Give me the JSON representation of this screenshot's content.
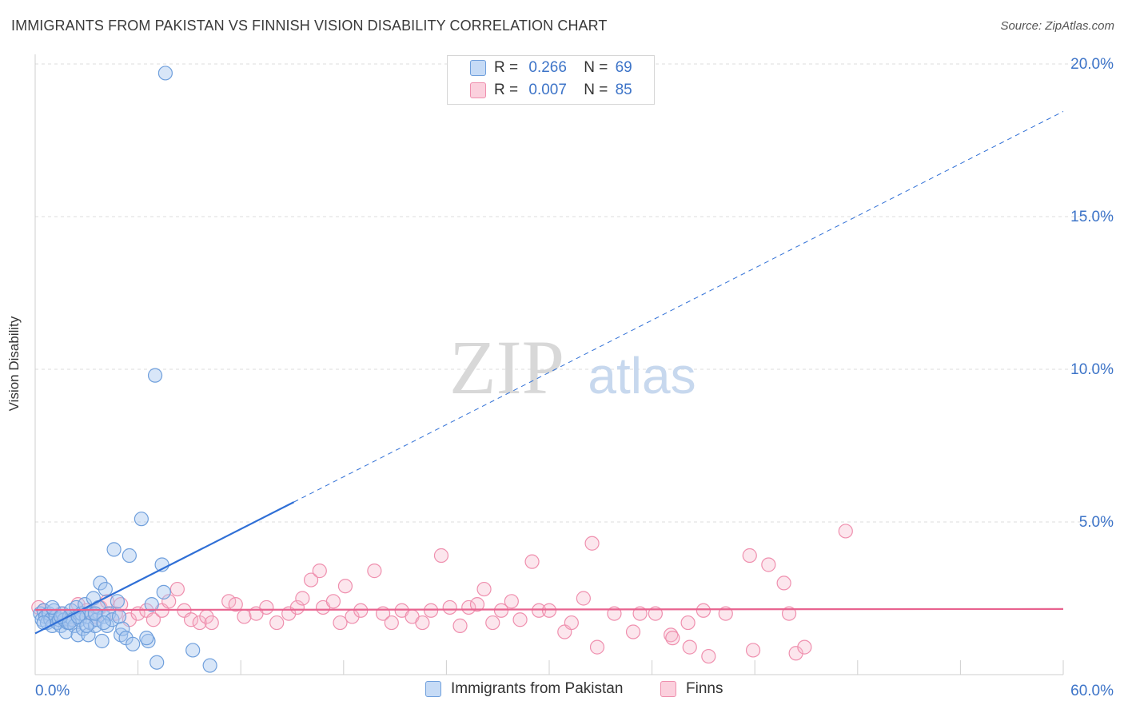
{
  "header": {
    "title": "IMMIGRANTS FROM PAKISTAN VS FINNISH VISION DISABILITY CORRELATION CHART",
    "source": "Source: ZipAtlas.com"
  },
  "watermark": {
    "zip": "ZIP",
    "atlas": "atlas"
  },
  "legend": {
    "r_label": "R =",
    "n_label": "N =",
    "rows": [
      {
        "r": "0.266",
        "n": "69",
        "color": "#a9c8f0"
      },
      {
        "r": "0.007",
        "n": "85",
        "color": "#f7b8cb"
      }
    ]
  },
  "colors": {
    "blue_fill": "#a9c8f0",
    "blue_stroke": "#6f9fdc",
    "blue_line": "#2f6fd6",
    "pink_fill": "#f7b8cb",
    "pink_stroke": "#ef8fae",
    "pink_line": "#e8638f",
    "tick_label": "#3d74c8",
    "grid": "#dcdcdc"
  },
  "chart_data": {
    "type": "scatter",
    "title": "IMMIGRANTS FROM PAKISTAN VS FINNISH VISION DISABILITY CORRELATION CHART",
    "xlabel": "",
    "ylabel": "Vision Disability",
    "xlim": [
      0,
      60
    ],
    "ylim": [
      0,
      20
    ],
    "x_tick_labels": [
      "0.0%",
      "60.0%"
    ],
    "y_ticks": [
      5,
      10,
      15,
      20
    ],
    "y_tick_labels": [
      "5.0%",
      "10.0%",
      "15.0%",
      "20.0%"
    ],
    "grid": true,
    "series": [
      {
        "name": "Immigrants from Pakistan",
        "r": 0.266,
        "n": 69,
        "trend": {
          "slope": 0.2849,
          "intercept": 1.35,
          "solid_to_x": 15.1,
          "dashed_to_x": 60
        },
        "points": [
          [
            0.3,
            2.0
          ],
          [
            0.4,
            1.8
          ],
          [
            0.5,
            2.1
          ],
          [
            0.6,
            1.9
          ],
          [
            0.7,
            1.7
          ],
          [
            0.8,
            2.0
          ],
          [
            0.9,
            1.8
          ],
          [
            1.0,
            1.6
          ],
          [
            1.1,
            2.1
          ],
          [
            1.2,
            1.9
          ],
          [
            1.3,
            1.7
          ],
          [
            1.4,
            1.8
          ],
          [
            1.5,
            1.6
          ],
          [
            1.6,
            2.0
          ],
          [
            1.7,
            1.8
          ],
          [
            1.8,
            1.4
          ],
          [
            1.9,
            1.7
          ],
          [
            2.0,
            1.9
          ],
          [
            2.1,
            2.1
          ],
          [
            2.2,
            1.8
          ],
          [
            2.3,
            1.6
          ],
          [
            2.4,
            2.2
          ],
          [
            2.5,
            1.3
          ],
          [
            2.6,
            1.8
          ],
          [
            2.7,
            2.0
          ],
          [
            2.8,
            1.5
          ],
          [
            2.9,
            2.3
          ],
          [
            3.0,
            1.9
          ],
          [
            3.1,
            1.3
          ],
          [
            3.2,
            1.7
          ],
          [
            3.3,
            2.0
          ],
          [
            3.4,
            2.5
          ],
          [
            3.5,
            1.6
          ],
          [
            3.6,
            1.8
          ],
          [
            3.7,
            2.2
          ],
          [
            3.8,
            3.0
          ],
          [
            3.9,
            1.1
          ],
          [
            4.0,
            1.9
          ],
          [
            4.1,
            2.8
          ],
          [
            4.2,
            1.6
          ],
          [
            4.3,
            2.0
          ],
          [
            4.5,
            1.8
          ],
          [
            4.6,
            4.1
          ],
          [
            4.8,
            2.4
          ],
          [
            4.9,
            1.9
          ],
          [
            5.0,
            1.3
          ],
          [
            5.1,
            1.5
          ],
          [
            5.3,
            1.2
          ],
          [
            5.5,
            3.9
          ],
          [
            5.7,
            1.0
          ],
          [
            6.2,
            5.1
          ],
          [
            6.6,
            1.1
          ],
          [
            6.8,
            2.3
          ],
          [
            7.0,
            9.8
          ],
          [
            7.1,
            0.4
          ],
          [
            7.4,
            3.6
          ],
          [
            7.5,
            2.7
          ],
          [
            7.6,
            19.7
          ],
          [
            9.2,
            0.8
          ],
          [
            10.2,
            0.3
          ],
          [
            0.5,
            1.7
          ],
          [
            1.0,
            2.2
          ],
          [
            1.5,
            1.9
          ],
          [
            2.0,
            1.7
          ],
          [
            2.5,
            1.9
          ],
          [
            3.0,
            1.6
          ],
          [
            3.5,
            2.0
          ],
          [
            4.0,
            1.7
          ],
          [
            6.5,
            1.2
          ]
        ]
      },
      {
        "name": "Finns",
        "r": 0.007,
        "n": 85,
        "trend": {
          "slope": 0.0005,
          "intercept": 2.12,
          "solid_to_x": 60,
          "dashed_to_x": 60
        },
        "points": [
          [
            0.2,
            2.2
          ],
          [
            0.5,
            2.1
          ],
          [
            1.0,
            1.9
          ],
          [
            1.5,
            2.0
          ],
          [
            2.0,
            1.8
          ],
          [
            2.5,
            2.3
          ],
          [
            3.0,
            2.1
          ],
          [
            3.5,
            1.9
          ],
          [
            3.8,
            2.2
          ],
          [
            4.2,
            2.4
          ],
          [
            4.7,
            2.0
          ],
          [
            5.0,
            2.3
          ],
          [
            5.5,
            1.8
          ],
          [
            6.0,
            2.0
          ],
          [
            6.5,
            2.1
          ],
          [
            6.9,
            1.8
          ],
          [
            7.4,
            2.1
          ],
          [
            7.8,
            2.4
          ],
          [
            8.3,
            2.8
          ],
          [
            8.7,
            2.1
          ],
          [
            9.1,
            1.8
          ],
          [
            9.6,
            1.7
          ],
          [
            10.0,
            1.9
          ],
          [
            10.3,
            1.7
          ],
          [
            11.3,
            2.4
          ],
          [
            11.7,
            2.3
          ],
          [
            12.2,
            1.9
          ],
          [
            12.9,
            2.0
          ],
          [
            13.5,
            2.2
          ],
          [
            14.1,
            1.7
          ],
          [
            14.8,
            2.0
          ],
          [
            15.3,
            2.2
          ],
          [
            15.6,
            2.5
          ],
          [
            16.1,
            3.1
          ],
          [
            16.6,
            3.4
          ],
          [
            16.8,
            2.2
          ],
          [
            17.4,
            2.4
          ],
          [
            17.8,
            1.7
          ],
          [
            18.1,
            2.9
          ],
          [
            18.5,
            1.9
          ],
          [
            19.0,
            2.1
          ],
          [
            19.8,
            3.4
          ],
          [
            20.3,
            2.0
          ],
          [
            20.8,
            1.7
          ],
          [
            21.4,
            2.1
          ],
          [
            22.0,
            1.9
          ],
          [
            22.6,
            1.7
          ],
          [
            23.1,
            2.1
          ],
          [
            23.7,
            3.9
          ],
          [
            24.2,
            2.2
          ],
          [
            24.8,
            1.6
          ],
          [
            25.3,
            2.2
          ],
          [
            25.8,
            2.3
          ],
          [
            26.2,
            2.8
          ],
          [
            26.7,
            1.7
          ],
          [
            27.2,
            2.1
          ],
          [
            27.8,
            2.4
          ],
          [
            28.3,
            1.8
          ],
          [
            29.0,
            3.7
          ],
          [
            29.4,
            2.1
          ],
          [
            30.0,
            2.1
          ],
          [
            30.9,
            1.4
          ],
          [
            31.3,
            1.7
          ],
          [
            32.0,
            2.5
          ],
          [
            32.5,
            4.3
          ],
          [
            32.8,
            0.9
          ],
          [
            33.8,
            2.0
          ],
          [
            34.9,
            1.4
          ],
          [
            35.3,
            2.0
          ],
          [
            36.2,
            2.0
          ],
          [
            37.1,
            1.3
          ],
          [
            37.2,
            1.2
          ],
          [
            38.1,
            1.7
          ],
          [
            38.2,
            0.9
          ],
          [
            39.0,
            2.1
          ],
          [
            39.3,
            0.6
          ],
          [
            40.3,
            2.0
          ],
          [
            41.7,
            3.9
          ],
          [
            41.9,
            0.8
          ],
          [
            42.8,
            3.6
          ],
          [
            43.7,
            3.0
          ],
          [
            44.0,
            2.0
          ],
          [
            44.4,
            0.7
          ],
          [
            44.9,
            0.9
          ],
          [
            47.3,
            4.7
          ]
        ]
      }
    ]
  },
  "bottom_legend": [
    {
      "label": "Immigrants from Pakistan"
    },
    {
      "label": "Finns"
    }
  ]
}
